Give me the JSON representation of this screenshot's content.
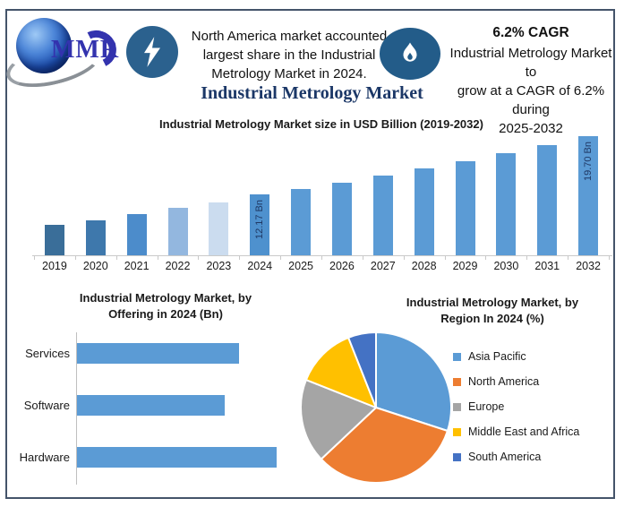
{
  "header": {
    "logo_text": "MMR",
    "highlight_lines": [
      "North America market accounted",
      "largest share in the Industrial",
      "Metrology Market in 2024."
    ],
    "cagr_title": "6.2% CAGR",
    "cagr_lines": [
      "Industrial Metrology Market to",
      "grow at a CAGR of 6.2% during",
      "2025-2032"
    ]
  },
  "main_title": "Industrial Metrology Market",
  "colors": {
    "accent_blue": "#5B9BD5",
    "icon_circle_blue": "#2B618E",
    "title_navy": "#1B3767",
    "frame": "#44546A",
    "bar_label_text": "#1F3864"
  },
  "chart_data": [
    {
      "id": "market_size",
      "type": "bar",
      "title": "Industrial Metrology Market size in USD Billion (2019-2032)",
      "categories": [
        "2019",
        "2020",
        "2021",
        "2022",
        "2023",
        "2024",
        "2025",
        "2026",
        "2027",
        "2028",
        "2029",
        "2030",
        "2031",
        "2032"
      ],
      "values": [
        8.2,
        8.85,
        9.6,
        10.4,
        11.15,
        12.17,
        12.92,
        13.73,
        14.58,
        15.48,
        16.44,
        17.46,
        18.55,
        19.7
      ],
      "unit": "USD Bn",
      "data_labels": {
        "2024": "12.17 Bn",
        "2032": "19.70 Bn"
      },
      "bar_colors": [
        "#3A6E99",
        "#3E78AC",
        "#4C8CCB",
        "#93B7DF",
        "#CBDCEF",
        "#4E91CE",
        "#5B9BD5",
        "#5B9BD5",
        "#5B9BD5",
        "#5B9BD5",
        "#5B9BD5",
        "#5B9BD5",
        "#5B9BD5",
        "#5B9BD5"
      ],
      "ylim": [
        4.3,
        19.7
      ],
      "grid": false,
      "legend": false
    },
    {
      "id": "offering",
      "type": "bar",
      "orientation": "horizontal",
      "title_lines": [
        "Industrial Metrology Market, by",
        "Offering in 2024 (Bn)"
      ],
      "categories": [
        "Services",
        "Software",
        "Hardware"
      ],
      "relative_values": [
        0.81,
        0.74,
        1.0
      ],
      "bar_color": "#5B9BD5",
      "grid": false,
      "legend": false
    },
    {
      "id": "region",
      "type": "pie",
      "title_lines": [
        "Industrial Metrology Market, by",
        "Region In 2024 (%)"
      ],
      "slices": [
        {
          "name": "Asia Pacific",
          "value": 30,
          "color": "#5B9BD5"
        },
        {
          "name": "North America",
          "value": 33,
          "color": "#ED7D31"
        },
        {
          "name": "Europe",
          "value": 18,
          "color": "#A5A5A5"
        },
        {
          "name": "Middle East and Africa",
          "value": 13,
          "color": "#FFC000"
        },
        {
          "name": "South America",
          "value": 6,
          "color": "#4472C4"
        }
      ],
      "start_angle_deg": 0,
      "clockwise": true,
      "legend_position": "right"
    }
  ]
}
